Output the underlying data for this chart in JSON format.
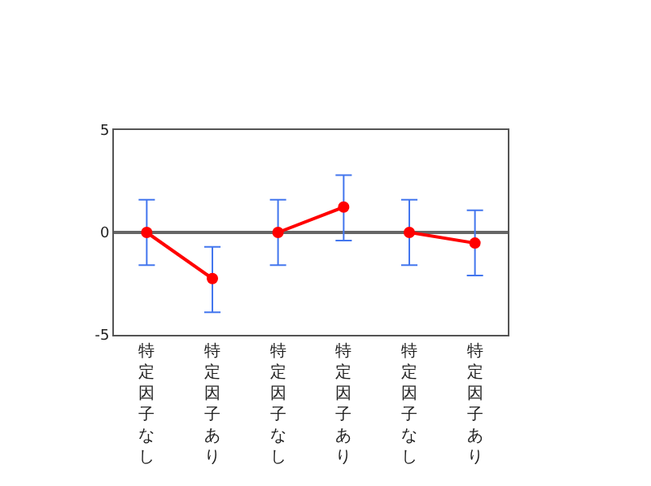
{
  "chart_data": {
    "type": "line",
    "categories": [
      "特定因子なし",
      "特定因子あり",
      "特定因子なし",
      "特定因子あり",
      "特定因子なし",
      "特定因子あり"
    ],
    "series": [
      {
        "color": "#ff0000",
        "values": [
          0,
          -2.25,
          null,
          null,
          null,
          null
        ],
        "errors": [
          [
            -1.6,
            1.6
          ],
          [
            -3.9,
            -0.7
          ],
          null,
          null,
          null,
          null
        ]
      },
      {
        "color": "#ff0000",
        "values": [
          null,
          null,
          0,
          1.24,
          null,
          null
        ],
        "errors": [
          null,
          null,
          [
            -1.6,
            1.6
          ],
          [
            -0.4,
            2.8
          ],
          null,
          null
        ]
      },
      {
        "color": "#ff0000",
        "values": [
          null,
          null,
          null,
          null,
          0,
          -0.52
        ],
        "errors": [
          null,
          null,
          null,
          null,
          [
            -1.6,
            1.6
          ],
          [
            -2.1,
            1.08
          ]
        ]
      }
    ],
    "ylim": [
      -5,
      5
    ],
    "yticks": [
      5,
      0,
      -5
    ],
    "grid": false,
    "marker": "circle",
    "line_style": "solid",
    "ref_lines": [
      {
        "axis": "y",
        "value": 0,
        "color": "#666666"
      }
    ]
  }
}
